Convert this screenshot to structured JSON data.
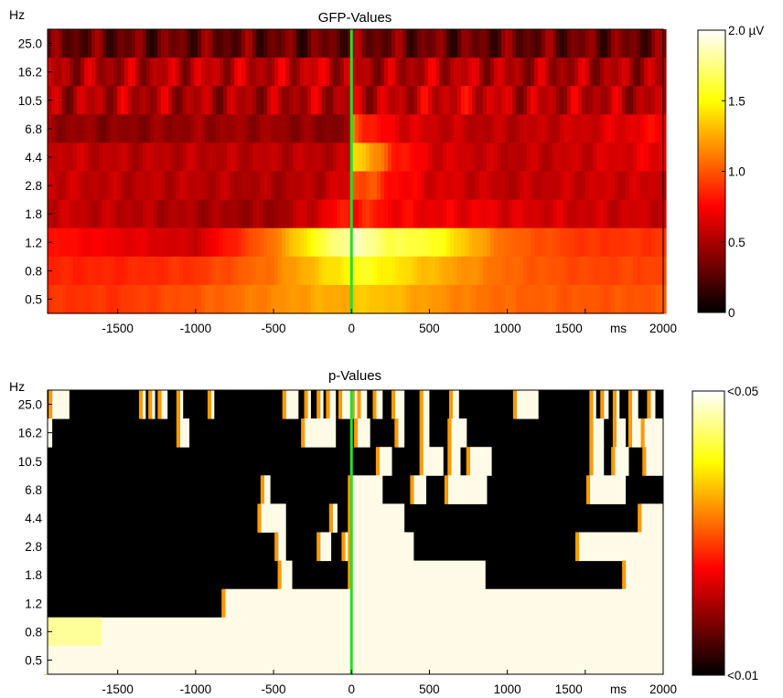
{
  "chart_data": [
    {
      "type": "heatmap",
      "title": "GFP-Values",
      "y_unit_label": "Hz",
      "x_unit_label": "ms",
      "xlim": [
        -1950,
        2000
      ],
      "x_ticks": [
        {
          "value": -1500,
          "label": "-1500"
        },
        {
          "value": -1000,
          "label": "-1000"
        },
        {
          "value": -500,
          "label": "-500"
        },
        {
          "value": 0,
          "label": "0"
        },
        {
          "value": 500,
          "label": "500"
        },
        {
          "value": 1000,
          "label": "1000"
        },
        {
          "value": 1500,
          "label": "1500"
        },
        {
          "value": 2000,
          "label": "2000"
        }
      ],
      "y_categories": [
        "25.0",
        "16.2",
        "10.5",
        "6.8",
        "4.4",
        "2.8",
        "1.8",
        "1.2",
        "0.8",
        "0.5"
      ],
      "marker_line": {
        "x": 0,
        "color": "#22e02a"
      },
      "colorbar": {
        "min": 0,
        "max": 2.0,
        "unit": "µV",
        "colormap": "hot",
        "ticks": [
          {
            "value": 2.0,
            "label": "2.0 µV"
          },
          {
            "value": 1.5,
            "label": "1.5"
          },
          {
            "value": 1.0,
            "label": "1.0"
          },
          {
            "value": 0.5,
            "label": "0.5"
          },
          {
            "value": 0,
            "label": "0"
          }
        ]
      },
      "time_knots": [
        -1950,
        -1500,
        -1000,
        -500,
        -200,
        -5,
        5,
        100,
        250,
        500,
        800,
        1000,
        1500,
        2000
      ],
      "values": [
        [
          0.3,
          0.3,
          0.32,
          0.3,
          0.3,
          0.32,
          0.35,
          0.35,
          0.33,
          0.32,
          0.3,
          0.32,
          0.33,
          0.32
        ],
        [
          0.5,
          0.5,
          0.55,
          0.55,
          0.6,
          0.5,
          0.55,
          0.5,
          0.5,
          0.55,
          0.55,
          0.5,
          0.5,
          0.5
        ],
        [
          0.5,
          0.55,
          0.5,
          0.5,
          0.55,
          0.5,
          0.6,
          0.55,
          0.55,
          0.6,
          0.65,
          0.55,
          0.55,
          0.5
        ],
        [
          0.45,
          0.4,
          0.45,
          0.45,
          0.4,
          0.4,
          1.1,
          0.85,
          0.7,
          0.6,
          0.55,
          0.55,
          0.6,
          0.75
        ],
        [
          0.6,
          0.55,
          0.55,
          0.55,
          0.55,
          0.55,
          1.45,
          1.3,
          0.9,
          0.65,
          0.6,
          0.55,
          0.6,
          0.7
        ],
        [
          0.6,
          0.55,
          0.55,
          0.5,
          0.55,
          0.65,
          1.0,
          1.0,
          0.8,
          0.65,
          0.6,
          0.55,
          0.6,
          0.6
        ],
        [
          0.6,
          0.55,
          0.5,
          0.45,
          0.65,
          0.85,
          0.8,
          0.85,
          0.75,
          0.7,
          0.7,
          0.65,
          0.6,
          0.6
        ],
        [
          0.8,
          0.7,
          0.6,
          1.1,
          1.6,
          1.85,
          1.9,
          1.8,
          1.65,
          1.6,
          1.25,
          1.05,
          0.9,
          0.9
        ],
        [
          0.85,
          0.85,
          0.9,
          1.1,
          1.35,
          1.5,
          1.55,
          1.55,
          1.45,
          1.3,
          1.15,
          1.05,
          0.95,
          0.95
        ],
        [
          0.9,
          0.9,
          1.0,
          1.15,
          1.25,
          1.25,
          1.3,
          1.35,
          1.3,
          1.2,
          1.1,
          1.05,
          1.0,
          1.0
        ]
      ]
    },
    {
      "type": "heatmap",
      "title": "p-Values",
      "y_unit_label": "Hz",
      "x_unit_label": "ms",
      "xlim": [
        -1950,
        2000
      ],
      "x_ticks": [
        {
          "value": -1500,
          "label": "-1500"
        },
        {
          "value": -1000,
          "label": "-1000"
        },
        {
          "value": -500,
          "label": "-500"
        },
        {
          "value": 0,
          "label": "0"
        },
        {
          "value": 500,
          "label": "500"
        },
        {
          "value": 1000,
          "label": "1000"
        },
        {
          "value": 1500,
          "label": "1500"
        },
        {
          "value": 2000,
          "label": "2000"
        }
      ],
      "y_categories": [
        "25.0",
        "16.2",
        "10.5",
        "6.8",
        "4.4",
        "2.8",
        "1.8",
        "1.2",
        "0.8",
        "0.5"
      ],
      "marker_line": {
        "x": 0,
        "color": "#22e02a"
      },
      "colorbar": {
        "min": 0.01,
        "max": 0.05,
        "colormap": "hot",
        "ticks": [
          {
            "value": 0.01,
            "label": "<0.01"
          },
          {
            "value": 0.05,
            "label": "<0.05"
          }
        ]
      },
      "significant_spans_ms": [
        [
          [
            -1920,
            -1810
          ],
          [
            -1340,
            -1320
          ],
          [
            -1280,
            -1260
          ],
          [
            -1220,
            -1180
          ],
          [
            -1100,
            -1080
          ],
          [
            -900,
            -880
          ],
          [
            -420,
            -340
          ],
          [
            -280,
            -260
          ],
          [
            -200,
            -180
          ],
          [
            -140,
            -100
          ],
          [
            -60,
            0
          ],
          [
            20,
            40
          ],
          [
            60,
            100
          ],
          [
            160,
            200
          ],
          [
            280,
            340
          ],
          [
            460,
            500
          ],
          [
            650,
            690
          ],
          [
            1060,
            1200
          ],
          [
            1550,
            1570
          ],
          [
            1620,
            1650
          ],
          [
            1700,
            1720
          ],
          [
            1800,
            1840
          ],
          [
            1920,
            1950
          ]
        ],
        [
          [
            -1950,
            -1920
          ],
          [
            -1100,
            -1040
          ],
          [
            -300,
            -100
          ],
          [
            40,
            120
          ],
          [
            300,
            340
          ],
          [
            460,
            500
          ],
          [
            640,
            740
          ],
          [
            1550,
            1620
          ],
          [
            1700,
            1760
          ],
          [
            1800,
            1860
          ],
          [
            1880,
            2000
          ]
        ],
        [
          [
            180,
            260
          ],
          [
            460,
            590
          ],
          [
            640,
            700
          ],
          [
            760,
            900
          ],
          [
            1550,
            1620
          ],
          [
            1690,
            1780
          ],
          [
            1890,
            2000
          ]
        ],
        [
          [
            -560,
            -520
          ],
          [
            0,
            200
          ],
          [
            400,
            480
          ],
          [
            620,
            870
          ],
          [
            1530,
            1760
          ]
        ],
        [
          [
            -580,
            -420
          ],
          [
            -120,
            -90
          ],
          [
            0,
            340
          ],
          [
            1860,
            2000
          ]
        ],
        [
          [
            -470,
            -420
          ],
          [
            -200,
            -130
          ],
          [
            -40,
            0
          ],
          [
            0,
            400
          ],
          [
            1460,
            2000
          ]
        ],
        [
          [
            -450,
            -380
          ],
          [
            0,
            860
          ],
          [
            1760,
            2000
          ]
        ],
        [
          [
            -810,
            2000
          ]
        ],
        [
          [
            -1950,
            2000
          ]
        ],
        [
          [
            -1950,
            2000
          ]
        ]
      ],
      "near_threshold_spans_ms": [
        [],
        [],
        [],
        [],
        [],
        [],
        [],
        [],
        [
          [
            -1950,
            -1600
          ]
        ],
        []
      ]
    }
  ]
}
